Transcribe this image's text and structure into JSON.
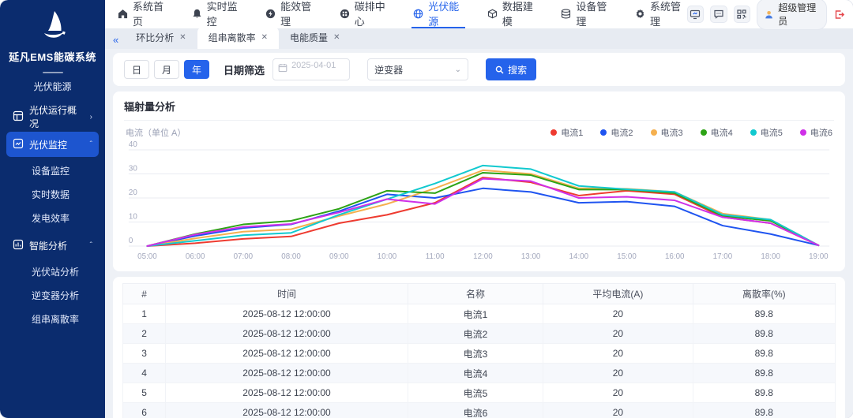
{
  "sidebar": {
    "title": "延凡EMS能碳系统",
    "subtitle": "光伏能源",
    "menu": [
      {
        "label": "光伏运行概况",
        "icon": "pv-overview-icon",
        "chevron": "›",
        "selected": false,
        "children": []
      },
      {
        "label": "光伏监控",
        "icon": "pv-monitor-icon",
        "chevron": "ˆ",
        "selected": true,
        "children": [
          "设备监控",
          "实时数据",
          "发电效率"
        ]
      },
      {
        "label": "智能分析",
        "icon": "smart-analysis-icon",
        "chevron": "ˆ",
        "selected": false,
        "children": [
          "光伏站分析",
          "逆变器分析",
          "组串离散率"
        ]
      }
    ]
  },
  "topnav": {
    "items": [
      {
        "label": "系统首页",
        "icon": "home-icon",
        "active": false
      },
      {
        "label": "实时监控",
        "icon": "bell-icon",
        "active": false
      },
      {
        "label": "能效管理",
        "icon": "energy-icon",
        "active": false
      },
      {
        "label": "碳排中心",
        "icon": "carbon-icon",
        "active": false
      },
      {
        "label": "光伏能源",
        "icon": "pv-globe-icon",
        "active": true
      },
      {
        "label": "数据建模",
        "icon": "cube-icon",
        "active": false
      },
      {
        "label": "设备管理",
        "icon": "database-icon",
        "active": false
      },
      {
        "label": "系统管理",
        "icon": "gear-icon",
        "active": false
      }
    ],
    "user": {
      "name": "超级管理员"
    }
  },
  "tabs": [
    {
      "label": "环比分析",
      "active": false
    },
    {
      "label": "组串离散率",
      "active": true
    },
    {
      "label": "电能质量",
      "active": false
    }
  ],
  "filters": {
    "period_options": [
      "日",
      "月",
      "年"
    ],
    "period_active": "年",
    "date_label": "日期筛选",
    "date_value": "2025-04-01",
    "device_value": "逆变器",
    "search_label": "搜索"
  },
  "chart_panel": {
    "title": "辐射量分析"
  },
  "chart_data": {
    "type": "line",
    "title": "辐射量分析",
    "ylabel": "电流（单位 A）",
    "ylim": [
      0,
      40
    ],
    "yticks": [
      0,
      10,
      20,
      30,
      40
    ],
    "grid": true,
    "legend_position": "top-right",
    "x": [
      "05:00",
      "06:00",
      "07:00",
      "08:00",
      "09:00",
      "10:00",
      "11:00",
      "12:00",
      "13:00",
      "14:00",
      "15:00",
      "16:00",
      "17:00",
      "18:00",
      "19:00"
    ],
    "series": [
      {
        "name": "电流1",
        "color": "#ee3b30",
        "values": [
          0,
          1.2,
          3,
          4,
          9.5,
          13,
          18,
          28.5,
          26.5,
          21,
          23,
          21.5,
          12,
          9.5,
          0.3
        ]
      },
      {
        "name": "电流2",
        "color": "#1f54f0",
        "values": [
          0,
          4.2,
          7.5,
          9,
          14.5,
          21.5,
          20,
          24,
          22.5,
          18,
          18.5,
          16.5,
          8.5,
          5,
          0.3
        ]
      },
      {
        "name": "电流3",
        "color": "#f5b04f",
        "values": [
          0,
          3.2,
          6,
          7,
          12.5,
          17.5,
          24,
          31.5,
          30,
          24,
          23.8,
          22.5,
          13.5,
          11,
          0.3
        ]
      },
      {
        "name": "电流4",
        "color": "#2da315",
        "values": [
          0,
          5,
          9,
          10.5,
          15.5,
          23,
          22,
          30.5,
          29.5,
          23.5,
          23.5,
          22,
          12.5,
          10.5,
          0.3
        ]
      },
      {
        "name": "电流5",
        "color": "#11c9cf",
        "values": [
          0,
          2.2,
          4.5,
          5.5,
          13,
          19.5,
          26,
          33.5,
          32,
          25,
          23.6,
          22.5,
          13,
          11,
          0.3
        ]
      },
      {
        "name": "电流6",
        "color": "#cf30e8",
        "values": [
          0,
          4.8,
          8,
          9.2,
          14,
          19.5,
          17.5,
          28,
          27,
          20,
          20.5,
          19,
          12,
          9.5,
          0.3
        ]
      }
    ]
  },
  "table": {
    "columns": [
      "#",
      "时间",
      "名称",
      "平均电流(A)",
      "离散率(%)"
    ],
    "rows": [
      [
        "1",
        "2025-08-12 12:00:00",
        "电流1",
        "20",
        "89.8"
      ],
      [
        "2",
        "2025-08-12 12:00:00",
        "电流2",
        "20",
        "89.8"
      ],
      [
        "3",
        "2025-08-12 12:00:00",
        "电流3",
        "20",
        "89.8"
      ],
      [
        "4",
        "2025-08-12 12:00:00",
        "电流4",
        "20",
        "89.8"
      ],
      [
        "5",
        "2025-08-12 12:00:00",
        "电流5",
        "20",
        "89.8"
      ],
      [
        "6",
        "2025-08-12 12:00:00",
        "电流6",
        "20",
        "89.8"
      ]
    ]
  }
}
